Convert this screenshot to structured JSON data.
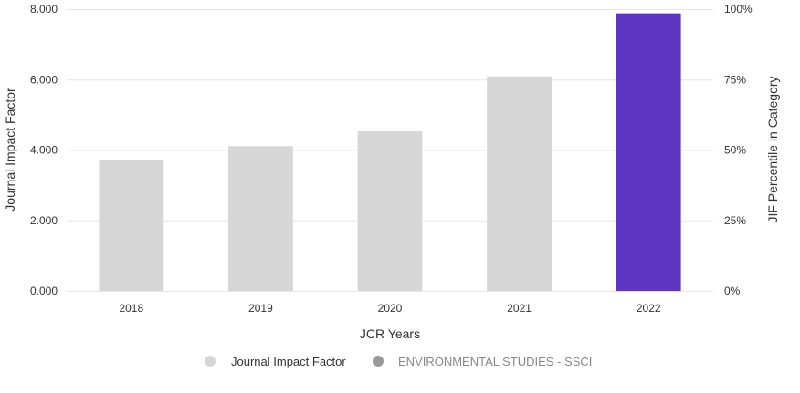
{
  "chart_data": {
    "type": "bar",
    "categories": [
      "2018",
      "2019",
      "2020",
      "2021",
      "2022"
    ],
    "series": [
      {
        "name": "Journal Impact Factor",
        "values": [
          3.72,
          4.11,
          4.53,
          6.09,
          7.88
        ]
      }
    ],
    "highlight_index": 4,
    "colors": {
      "bar": "#d6d6d6",
      "highlight": "#5e35c0",
      "legend_secondary": "#999999",
      "gridline": "#e6e6e6",
      "text": "#333333",
      "legend_secondary_text": "#888888"
    },
    "xlabel": "JCR Years",
    "ylabel": "Journal Impact Factor",
    "y2label": "JIF Percentile in Category",
    "ylim": [
      0,
      8
    ],
    "y_ticks": [
      "0.000",
      "2.000",
      "4.000",
      "6.000",
      "8.000"
    ],
    "y2lim": [
      0,
      100
    ],
    "y2_ticks": [
      "0%",
      "25%",
      "50%",
      "75%",
      "100%"
    ],
    "grid": true,
    "legend": {
      "placement": "bottom",
      "items": [
        {
          "label": "Journal Impact Factor",
          "color": "#d6d6d6",
          "text_color": "#333333"
        },
        {
          "label": "ENVIRONMENTAL STUDIES - SSCI",
          "color": "#999999",
          "text_color": "#888888"
        }
      ]
    }
  }
}
